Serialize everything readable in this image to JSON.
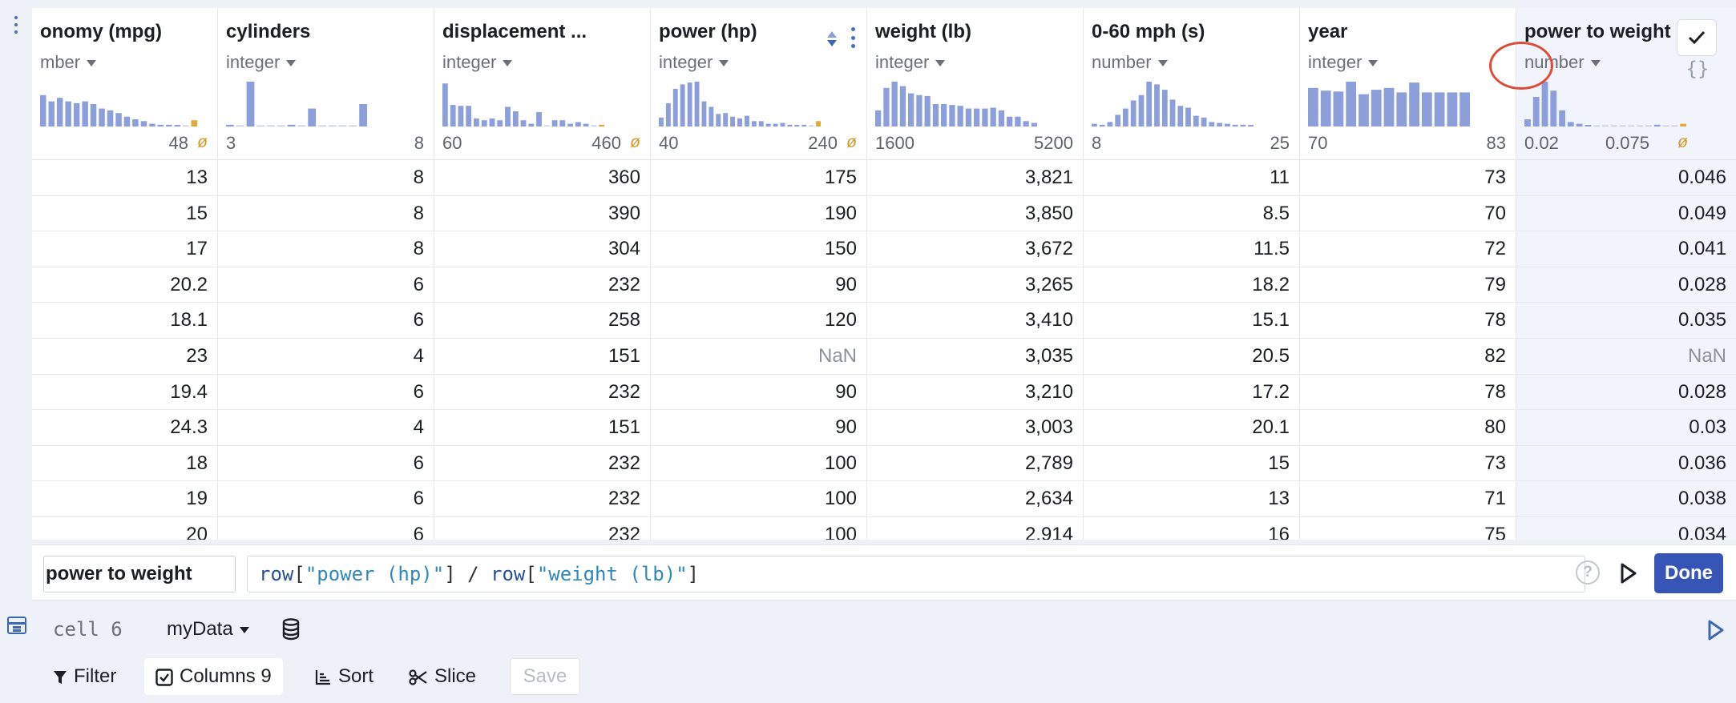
{
  "columns": [
    {
      "key": "mpg",
      "title": "onomy (mpg)",
      "type": "mber",
      "min": "",
      "max": "48",
      "nullable": true,
      "hist": [
        70,
        56,
        64,
        56,
        52,
        56,
        50,
        40,
        36,
        30,
        22,
        16,
        12,
        6,
        4,
        4,
        2,
        0,
        14
      ],
      "nullbar": true,
      "cells": [
        "13",
        "15",
        "17",
        "20.2",
        "18.1",
        "23",
        "19.4",
        "24.3",
        "18",
        "19",
        "20"
      ]
    },
    {
      "key": "cyl",
      "title": "cylinders",
      "type": "integer",
      "min": "3",
      "max": "8",
      "nullable": false,
      "hist": [
        4,
        0,
        100,
        0,
        0,
        0,
        4,
        0,
        40,
        0,
        0,
        0,
        0,
        50
      ],
      "cells": [
        "8",
        "8",
        "8",
        "6",
        "6",
        "4",
        "6",
        "4",
        "6",
        "6",
        "6"
      ]
    },
    {
      "key": "disp",
      "title": "displacement ...",
      "type": "integer",
      "min": "60",
      "max": "460",
      "nullable": true,
      "hist": [
        96,
        48,
        46,
        46,
        18,
        14,
        18,
        14,
        44,
        34,
        14,
        6,
        32,
        0,
        14,
        14,
        6,
        10,
        6,
        0,
        4
      ],
      "nullbar": true,
      "cells": [
        "360",
        "390",
        "304",
        "232",
        "258",
        "151",
        "232",
        "151",
        "232",
        "232",
        "232"
      ]
    },
    {
      "key": "hp",
      "title": "power (hp)",
      "type": "integer",
      "min": "40",
      "max": "240",
      "nullable": true,
      "hist": [
        20,
        52,
        84,
        94,
        98,
        100,
        56,
        44,
        28,
        30,
        22,
        18,
        24,
        12,
        12,
        6,
        6,
        8,
        4,
        2,
        4,
        0,
        12
      ],
      "nullbar": true,
      "cells": [
        "175",
        "190",
        "150",
        "90",
        "120",
        "NaN",
        "90",
        "90",
        "100",
        "100",
        "100"
      ]
    },
    {
      "key": "wt",
      "title": "weight (lb)",
      "type": "integer",
      "min": "1600",
      "max": "5200",
      "nullable": false,
      "hist": [
        36,
        86,
        100,
        90,
        74,
        70,
        68,
        50,
        50,
        48,
        46,
        40,
        40,
        40,
        42,
        36,
        22,
        22,
        12,
        8
      ],
      "cells": [
        "3,821",
        "3,850",
        "3,672",
        "3,265",
        "3,410",
        "3,035",
        "3,210",
        "3,003",
        "2,789",
        "2,634",
        "2,914"
      ]
    },
    {
      "key": "acc",
      "title": "0-60 mph (s)",
      "type": "number",
      "min": "8",
      "max": "25",
      "nullable": false,
      "hist": [
        6,
        4,
        10,
        26,
        40,
        58,
        70,
        100,
        94,
        82,
        60,
        46,
        42,
        24,
        20,
        10,
        8,
        6,
        4,
        4,
        2
      ],
      "cells": [
        "11",
        "8.5",
        "11.5",
        "18.2",
        "15.1",
        "20.5",
        "17.2",
        "20.1",
        "15",
        "13",
        "16"
      ]
    },
    {
      "key": "yr",
      "title": "year",
      "type": "integer",
      "min": "70",
      "max": "83",
      "nullable": false,
      "hist": [
        86,
        80,
        78,
        100,
        72,
        82,
        86,
        76,
        98,
        76,
        76,
        76,
        76
      ],
      "cells": [
        "73",
        "70",
        "72",
        "79",
        "78",
        "82",
        "78",
        "80",
        "73",
        "71",
        "75"
      ]
    },
    {
      "key": "pw",
      "title": "power to weight",
      "type": "number",
      "min": "0.02",
      "max": "0.075",
      "nullable": true,
      "hist": [
        16,
        66,
        100,
        80,
        36,
        10,
        6,
        2,
        0,
        0,
        0,
        0,
        0,
        0,
        0,
        4,
        0,
        0,
        6
      ],
      "nullbar": true,
      "cells": [
        "0.046",
        "0.049",
        "0.041",
        "0.028",
        "0.035",
        "NaN",
        "0.028",
        "0.03",
        "0.036",
        "0.038",
        "0.034"
      ]
    }
  ],
  "formula": {
    "column_name": "power to weight",
    "expr_parts": [
      {
        "t": "row",
        "c": "fn"
      },
      {
        "t": "[",
        "c": "op"
      },
      {
        "t": "\"power (hp)\"",
        "c": "str"
      },
      {
        "t": "] / ",
        "c": "op"
      },
      {
        "t": "row",
        "c": "fn"
      },
      {
        "t": "[",
        "c": "op"
      },
      {
        "t": "\"weight (lb)\"",
        "c": "str"
      },
      {
        "t": "]",
        "c": "op"
      }
    ],
    "help": "?",
    "done_label": "Done"
  },
  "cell": {
    "label": "cell 6",
    "dataset": "myData"
  },
  "toolbar": {
    "filter_label": "Filter",
    "columns_label": "Columns",
    "columns_count": "9",
    "sort_label": "Sort",
    "slice_label": "Slice",
    "save_label": "Save"
  },
  "colors": {
    "hist": "#8c9fdb",
    "null": "#e0a93a",
    "accent": "#3754b7"
  },
  "icons": [
    "kebab-icon",
    "sort-icon",
    "check-icon",
    "braces-icon",
    "help-icon",
    "run-icon",
    "database-icon",
    "table-icon",
    "filter-icon",
    "checkbox-icon",
    "sort-lines-icon",
    "scissors-icon"
  ]
}
